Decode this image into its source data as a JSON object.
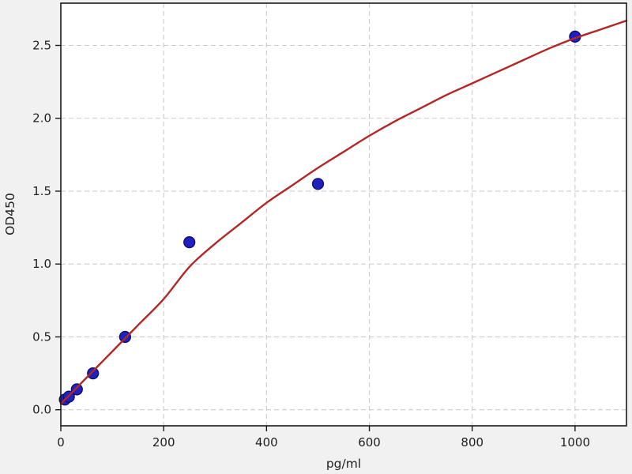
{
  "chart_data": {
    "type": "scatter",
    "title": "",
    "xlabel": "pg/ml",
    "ylabel": "OD450",
    "xlim": [
      0,
      1100
    ],
    "ylim": [
      -0.11,
      2.79
    ],
    "grid": "dashed",
    "legend_position": "none",
    "x_ticks": [
      {
        "value": 0,
        "label": "0"
      },
      {
        "value": 200,
        "label": "200"
      },
      {
        "value": 400,
        "label": "400"
      },
      {
        "value": 600,
        "label": "600"
      },
      {
        "value": 800,
        "label": "800"
      },
      {
        "value": 1000,
        "label": "1000"
      }
    ],
    "y_ticks": [
      {
        "value": 0.0,
        "label": "0.0"
      },
      {
        "value": 0.5,
        "label": "0.5"
      },
      {
        "value": 1.0,
        "label": "1.0"
      },
      {
        "value": 1.5,
        "label": "1.5"
      },
      {
        "value": 2.0,
        "label": "2.0"
      },
      {
        "value": 2.5,
        "label": "2.5"
      }
    ],
    "series": [
      {
        "name": "standard-points",
        "type": "scatter",
        "color": "#2020bb",
        "edge_color": "#0a0a6e",
        "marker_radius": 7,
        "points": [
          [
            7.8,
            0.07
          ],
          [
            15.6,
            0.09
          ],
          [
            31.25,
            0.14
          ],
          [
            62.5,
            0.25
          ],
          [
            125,
            0.5
          ],
          [
            250,
            1.15
          ],
          [
            500,
            1.55
          ],
          [
            1000,
            2.56
          ]
        ]
      },
      {
        "name": "fitted-curve",
        "type": "line",
        "color": "#b42525",
        "width": 2.4,
        "points": [
          [
            0,
            0.04
          ],
          [
            50,
            0.22
          ],
          [
            100,
            0.4
          ],
          [
            150,
            0.58
          ],
          [
            200,
            0.76
          ],
          [
            250,
            0.98
          ],
          [
            300,
            1.14
          ],
          [
            350,
            1.28
          ],
          [
            400,
            1.42
          ],
          [
            450,
            1.54
          ],
          [
            500,
            1.66
          ],
          [
            550,
            1.77
          ],
          [
            600,
            1.88
          ],
          [
            650,
            1.98
          ],
          [
            700,
            2.07
          ],
          [
            750,
            2.16
          ],
          [
            800,
            2.24
          ],
          [
            850,
            2.32
          ],
          [
            900,
            2.4
          ],
          [
            950,
            2.48
          ],
          [
            1000,
            2.55
          ],
          [
            1050,
            2.61
          ],
          [
            1100,
            2.67
          ]
        ]
      }
    ],
    "colors": {
      "figure_bg": "#f1f1f1",
      "plot_bg": "#ffffff",
      "grid": "#cbcbcb",
      "spine": "#1a1a1a",
      "tick": "#1a1a1a",
      "text": "#1f1f1f"
    }
  }
}
